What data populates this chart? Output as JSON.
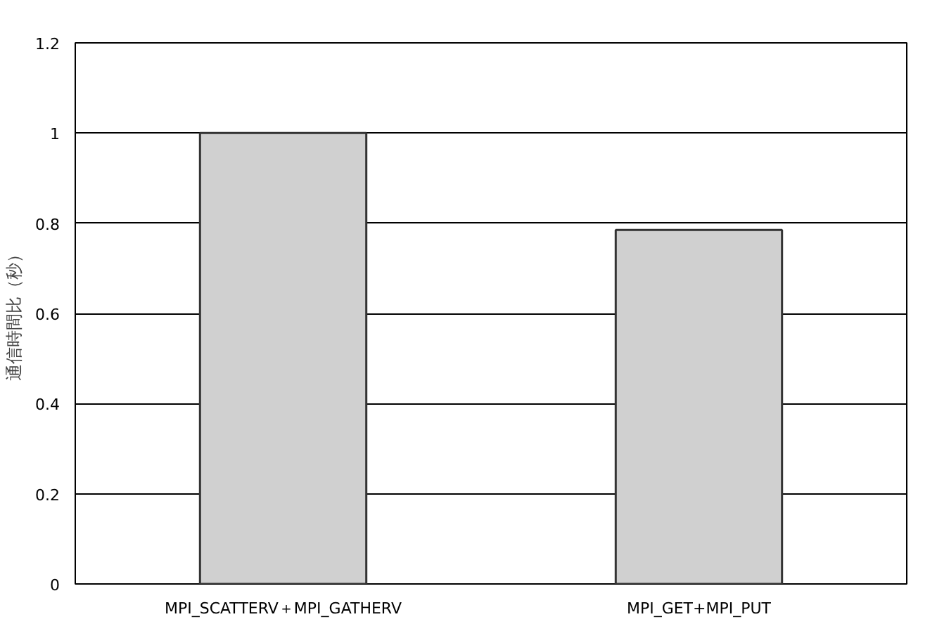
{
  "chart_data": {
    "type": "bar",
    "ylabel": "通信時間比（秒）",
    "categories": [
      "MPI_SCATTERV＋MPI_GATHERV",
      "MPI_GET+MPI_PUT"
    ],
    "values": [
      1,
      0.785
    ],
    "color": "#d0d0d0",
    "ylim": [
      0,
      1.2
    ],
    "yticks": [
      0,
      0.2,
      0.4,
      0.6,
      0.8,
      1,
      1.2
    ],
    "grid": "y"
  }
}
